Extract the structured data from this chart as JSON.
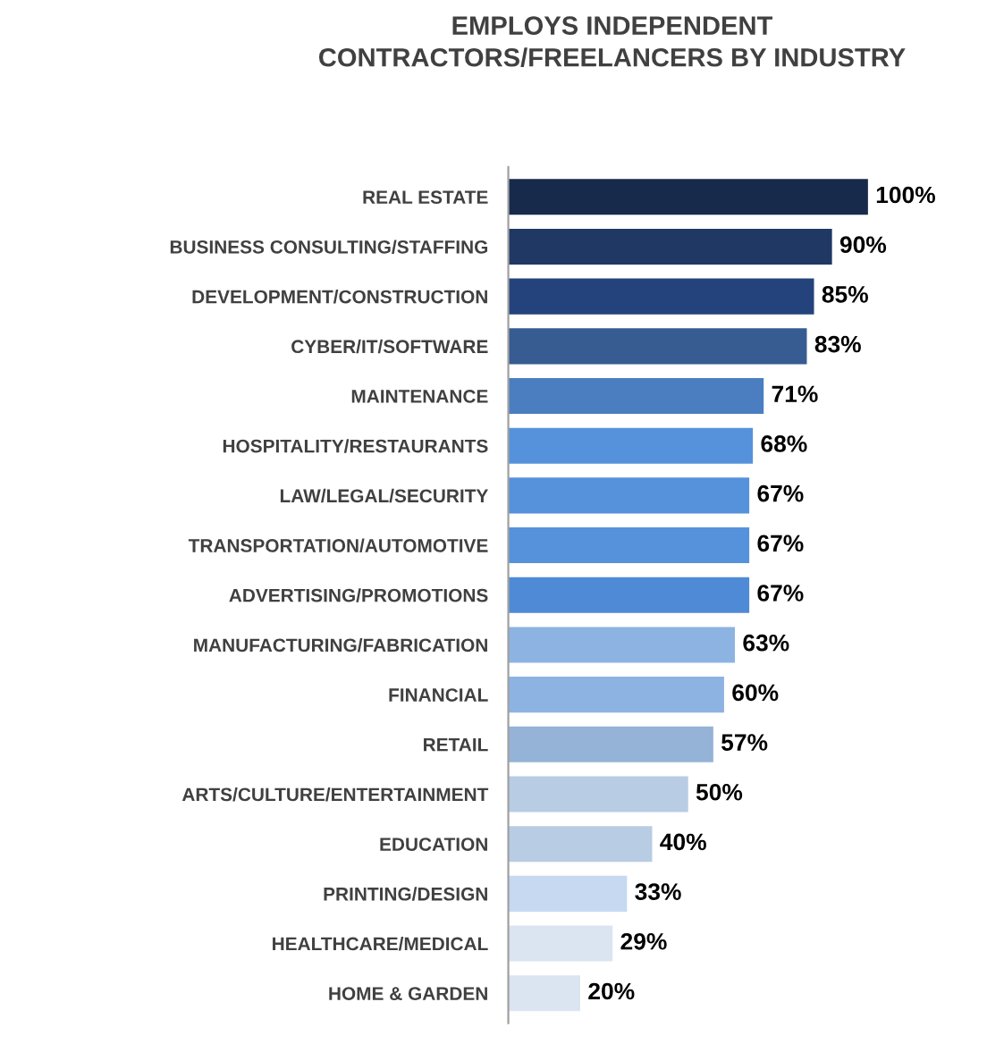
{
  "chart_data": {
    "type": "bar",
    "orientation": "horizontal",
    "title": "EMPLOYS INDEPENDENT\nCONTRACTORS/FREELANCERS BY INDUSTRY",
    "categories": [
      "REAL ESTATE",
      "BUSINESS CONSULTING/STAFFING",
      "DEVELOPMENT/CONSTRUCTION",
      "CYBER/IT/SOFTWARE",
      "MAINTENANCE",
      "HOSPITALITY/RESTAURANTS",
      "LAW/LEGAL/SECURITY",
      "TRANSPORTATION/AUTOMOTIVE",
      "ADVERTISING/PROMOTIONS",
      "MANUFACTURING/FABRICATION",
      "FINANCIAL",
      "RETAIL",
      "ARTS/CULTURE/ENTERTAINMENT",
      "EDUCATION",
      "PRINTING/DESIGN",
      "HEALTHCARE/MEDICAL",
      "HOME & GARDEN"
    ],
    "values": [
      100,
      90,
      85,
      83,
      71,
      68,
      67,
      67,
      67,
      63,
      60,
      57,
      50,
      40,
      33,
      29,
      20
    ],
    "value_labels": [
      "100%",
      "90%",
      "85%",
      "83%",
      "71%",
      "68%",
      "67%",
      "67%",
      "67%",
      "63%",
      "60%",
      "57%",
      "50%",
      "40%",
      "33%",
      "29%",
      "20%"
    ],
    "colors": [
      "#172a4c",
      "#1f3864",
      "#24437c",
      "#365c91",
      "#4a7ec0",
      "#5592db",
      "#5592db",
      "#5592db",
      "#4f8ad6",
      "#8db3e2",
      "#8db3e2",
      "#95b3d7",
      "#b8cce4",
      "#b8cce4",
      "#c6d9f1",
      "#dbe5f1",
      "#dbe5f1"
    ],
    "tick_labels": "y",
    "grid": false,
    "legend": false
  }
}
